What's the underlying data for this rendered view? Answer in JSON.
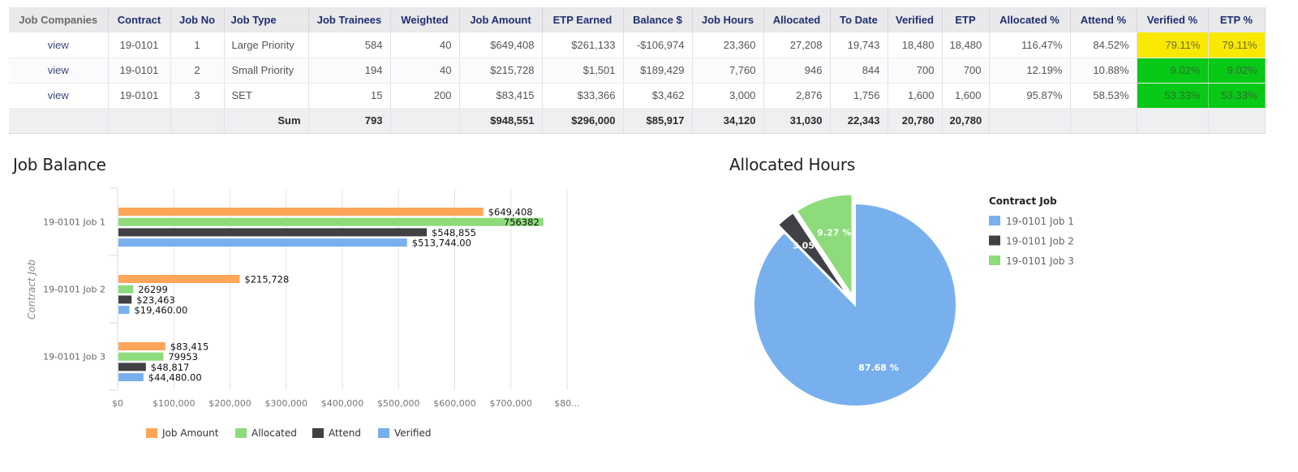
{
  "table": {
    "columns": [
      "Job Companies",
      "Contract",
      "Job No",
      "Job Type",
      "Job Trainees",
      "Weighted",
      "Job Amount",
      "ETP Earned",
      "Balance $",
      "Job Hours",
      "Allocated",
      "To Date",
      "Verified",
      "ETP",
      "Allocated %",
      "Attend %",
      "Verified %",
      "ETP %"
    ],
    "rows": [
      [
        "view",
        "19-0101",
        "1",
        "Large Priority",
        "584",
        "40",
        "$649,408",
        "$261,133",
        "-$106,974",
        "23,360",
        "27,208",
        "19,743",
        "18,480",
        "18,480",
        "116.47%",
        "84.52%",
        "79.11%",
        "79.11%"
      ],
      [
        "view",
        "19-0101",
        "2",
        "Small Priority",
        "194",
        "40",
        "$215,728",
        "$1,501",
        "$189,429",
        "7,760",
        "946",
        "844",
        "700",
        "700",
        "12.19%",
        "10.88%",
        "9.02%",
        "9.02%"
      ],
      [
        "view",
        "19-0101",
        "3",
        "SET",
        "15",
        "200",
        "$83,415",
        "$33,366",
        "$3,462",
        "3,000",
        "2,876",
        "1,756",
        "1,600",
        "1,600",
        "95.87%",
        "58.53%",
        "53.33%",
        "53.33%"
      ]
    ],
    "row_highlight": [
      "yellow",
      "green",
      "green"
    ],
    "highlight_colors": {
      "yellow": "#f9e800",
      "green": "#08c916"
    },
    "sum": [
      "",
      "",
      "",
      "Sum",
      "793",
      "",
      "$948,551",
      "$296,000",
      "$85,917",
      "34,120",
      "31,030",
      "22,343",
      "20,780",
      "20,780",
      "",
      "",
      "",
      ""
    ]
  },
  "chart_data": [
    {
      "type": "bar",
      "orientation": "horizontal",
      "title": "Job Balance",
      "xlabel": "",
      "ylabel": "Contract Job",
      "categories": [
        "19-0101 Job 1",
        "19-0101 Job 2",
        "19-0101 Job 3"
      ],
      "series": [
        {
          "name": "Job Amount",
          "color": "#ffa55a",
          "values": [
            649408,
            215728,
            83415
          ],
          "labels": [
            "$649,408",
            "$215,728",
            "$83,415"
          ]
        },
        {
          "name": "Allocated",
          "color": "#8ddb7b",
          "values": [
            756382,
            26299,
            79953
          ],
          "labels": [
            "756382",
            "26299",
            "79953"
          ]
        },
        {
          "name": "Attend",
          "color": "#404045",
          "values": [
            548855,
            23463,
            48817
          ],
          "labels": [
            "$548,855",
            "$23,463",
            "$48,817"
          ]
        },
        {
          "name": "Verified",
          "color": "#78b0ee",
          "values": [
            513744,
            19460,
            44480
          ],
          "labels": [
            "$513,744.00",
            "$19,460.00",
            "$44,480.00"
          ]
        }
      ],
      "xlim": [
        0,
        800000
      ],
      "xticks": [
        0,
        100000,
        200000,
        300000,
        400000,
        500000,
        600000,
        700000,
        800000
      ],
      "xtick_labels": [
        "$0",
        "$100,000",
        "$200,000",
        "$300,000",
        "$400,000",
        "$500,000",
        "$600,000",
        "$700,000",
        "$80..."
      ],
      "grid": true,
      "legend_position": "bottom"
    },
    {
      "type": "pie",
      "title": "Allocated Hours",
      "legend_title": "Contract Job",
      "legend_position": "right",
      "slices": [
        {
          "label": "19-0101 Job 1",
          "value": 27208,
          "percent_label": "87.68 %",
          "color": "#78b0ee",
          "exploded": false
        },
        {
          "label": "19-0101 Job 2",
          "value": 946,
          "percent_label": "3.05 %",
          "color": "#404045",
          "exploded": true
        },
        {
          "label": "19-0101 Job 3",
          "value": 2876,
          "percent_label": "9.27 %",
          "color": "#8ddb7b",
          "exploded": true
        }
      ]
    }
  ]
}
